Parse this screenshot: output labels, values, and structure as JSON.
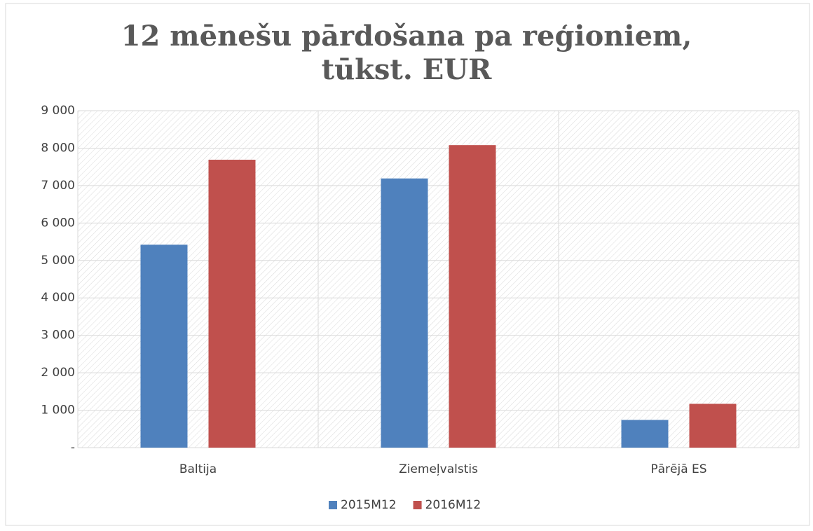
{
  "chart_data": {
    "type": "bar",
    "title": "12 mēnešu pārdošana pa reģioniem, tūkst. EUR",
    "categories": [
      "Baltija",
      "Ziemeļvalstis",
      "Pārējā ES"
    ],
    "series": [
      {
        "name": "2015M12",
        "color": "#4f81bd",
        "values": [
          5420,
          7190,
          740
        ]
      },
      {
        "name": "2016M12",
        "color": "#c0504d",
        "values": [
          7690,
          8080,
          1170
        ]
      }
    ],
    "ylim": [
      0,
      9000
    ],
    "yticks": [
      {
        "value": 0,
        "label": "-"
      },
      {
        "value": 1000,
        "label": "1 000"
      },
      {
        "value": 2000,
        "label": "2 000"
      },
      {
        "value": 3000,
        "label": "3 000"
      },
      {
        "value": 4000,
        "label": "4 000"
      },
      {
        "value": 5000,
        "label": "5 000"
      },
      {
        "value": 6000,
        "label": "6 000"
      },
      {
        "value": 7000,
        "label": "7 000"
      },
      {
        "value": 8000,
        "label": "8 000"
      },
      {
        "value": 9000,
        "label": "9 000"
      }
    ],
    "grid": true,
    "legend": "bottom"
  }
}
